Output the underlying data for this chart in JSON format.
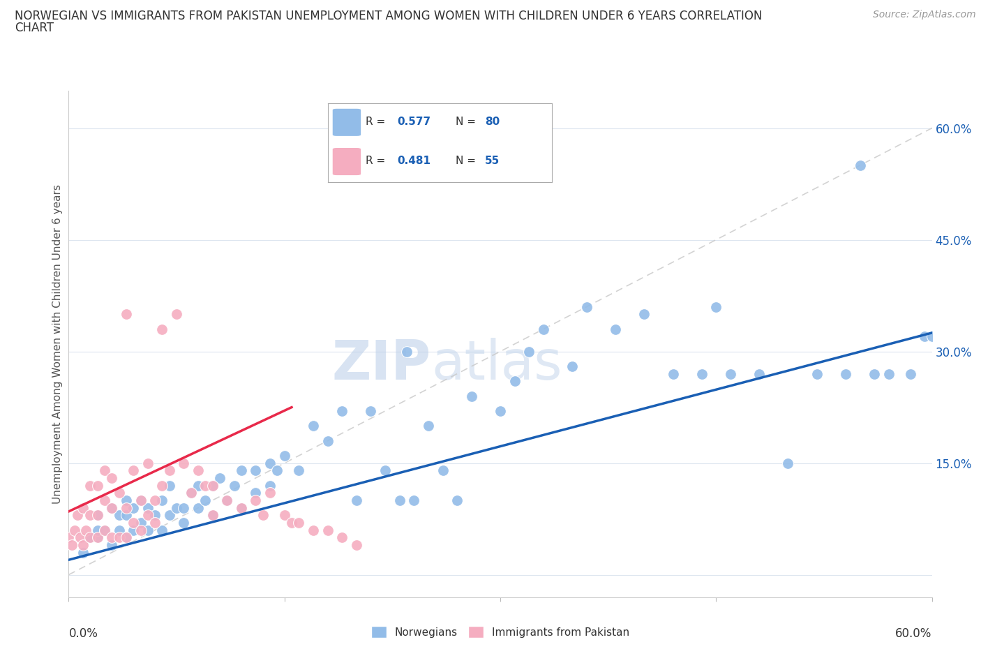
{
  "title_line1": "NORWEGIAN VS IMMIGRANTS FROM PAKISTAN UNEMPLOYMENT AMONG WOMEN WITH CHILDREN UNDER 6 YEARS CORRELATION",
  "title_line2": "CHART",
  "source": "Source: ZipAtlas.com",
  "ylabel": "Unemployment Among Women with Children Under 6 years",
  "xlim": [
    0.0,
    0.6
  ],
  "ylim": [
    -0.03,
    0.65
  ],
  "yticks": [
    0.0,
    0.15,
    0.3,
    0.45,
    0.6
  ],
  "ytick_labels": [
    "",
    "15.0%",
    "30.0%",
    "45.0%",
    "60.0%"
  ],
  "r_norwegian": 0.577,
  "n_norwegian": 80,
  "r_pakistan": 0.481,
  "n_pakistan": 55,
  "norwegian_color": "#92bce8",
  "pakistan_color": "#f5adc0",
  "trend_norwegian_color": "#1a5fb4",
  "trend_pakistan_color": "#e8294a",
  "diagonal_color": "#c8c8c8",
  "background_color": "#ffffff",
  "grid_color": "#dde5ef",
  "nor_x": [
    0.01,
    0.015,
    0.02,
    0.02,
    0.02,
    0.025,
    0.03,
    0.03,
    0.035,
    0.035,
    0.04,
    0.04,
    0.04,
    0.045,
    0.045,
    0.05,
    0.05,
    0.055,
    0.055,
    0.06,
    0.065,
    0.065,
    0.07,
    0.07,
    0.075,
    0.08,
    0.08,
    0.085,
    0.09,
    0.09,
    0.095,
    0.1,
    0.1,
    0.105,
    0.11,
    0.115,
    0.12,
    0.12,
    0.13,
    0.13,
    0.14,
    0.14,
    0.145,
    0.15,
    0.16,
    0.17,
    0.18,
    0.19,
    0.2,
    0.21,
    0.22,
    0.23,
    0.235,
    0.24,
    0.25,
    0.26,
    0.27,
    0.28,
    0.3,
    0.31,
    0.32,
    0.33,
    0.35,
    0.36,
    0.38,
    0.4,
    0.42,
    0.44,
    0.45,
    0.46,
    0.48,
    0.5,
    0.52,
    0.54,
    0.55,
    0.56,
    0.57,
    0.585,
    0.595,
    0.6
  ],
  "nor_y": [
    0.03,
    0.05,
    0.05,
    0.08,
    0.06,
    0.06,
    0.04,
    0.09,
    0.06,
    0.08,
    0.05,
    0.08,
    0.1,
    0.06,
    0.09,
    0.07,
    0.1,
    0.06,
    0.09,
    0.08,
    0.06,
    0.1,
    0.08,
    0.12,
    0.09,
    0.09,
    0.07,
    0.11,
    0.09,
    0.12,
    0.1,
    0.08,
    0.12,
    0.13,
    0.1,
    0.12,
    0.09,
    0.14,
    0.11,
    0.14,
    0.12,
    0.15,
    0.14,
    0.16,
    0.14,
    0.2,
    0.18,
    0.22,
    0.1,
    0.22,
    0.14,
    0.1,
    0.3,
    0.1,
    0.2,
    0.14,
    0.1,
    0.24,
    0.22,
    0.26,
    0.3,
    0.33,
    0.28,
    0.36,
    0.33,
    0.35,
    0.27,
    0.27,
    0.36,
    0.27,
    0.27,
    0.15,
    0.27,
    0.27,
    0.55,
    0.27,
    0.27,
    0.27,
    0.32,
    0.32
  ],
  "pak_x": [
    0.0,
    0.002,
    0.004,
    0.006,
    0.008,
    0.01,
    0.01,
    0.012,
    0.015,
    0.015,
    0.015,
    0.02,
    0.02,
    0.02,
    0.025,
    0.025,
    0.025,
    0.03,
    0.03,
    0.03,
    0.035,
    0.035,
    0.04,
    0.04,
    0.04,
    0.045,
    0.045,
    0.05,
    0.05,
    0.055,
    0.055,
    0.06,
    0.06,
    0.065,
    0.065,
    0.07,
    0.075,
    0.08,
    0.085,
    0.09,
    0.095,
    0.1,
    0.1,
    0.11,
    0.12,
    0.13,
    0.135,
    0.14,
    0.15,
    0.155,
    0.16,
    0.17,
    0.18,
    0.19,
    0.2
  ],
  "pak_y": [
    0.05,
    0.04,
    0.06,
    0.08,
    0.05,
    0.04,
    0.09,
    0.06,
    0.05,
    0.08,
    0.12,
    0.05,
    0.08,
    0.12,
    0.06,
    0.1,
    0.14,
    0.05,
    0.09,
    0.13,
    0.05,
    0.11,
    0.05,
    0.09,
    0.35,
    0.07,
    0.14,
    0.06,
    0.1,
    0.08,
    0.15,
    0.1,
    0.07,
    0.12,
    0.33,
    0.14,
    0.35,
    0.15,
    0.11,
    0.14,
    0.12,
    0.08,
    0.12,
    0.1,
    0.09,
    0.1,
    0.08,
    0.11,
    0.08,
    0.07,
    0.07,
    0.06,
    0.06,
    0.05,
    0.04
  ],
  "nor_trend_x0": 0.0,
  "nor_trend_y0": 0.02,
  "nor_trend_x1": 0.6,
  "nor_trend_y1": 0.325,
  "pak_trend_x0": 0.0,
  "pak_trend_y0": 0.085,
  "pak_trend_x1": 0.155,
  "pak_trend_y1": 0.225
}
